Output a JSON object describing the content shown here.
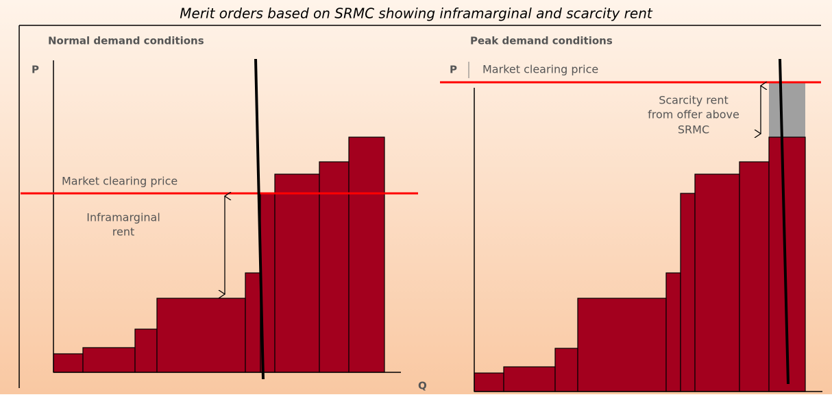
{
  "title": "Merit orders based on SRMC showing inframarginal and scarcity rent",
  "panels": [
    {
      "heading": "Normal demand conditions",
      "y_axis": "P",
      "x_axis": "Q",
      "price_label": "Market clearing price",
      "rent_label": [
        "Inframarginal",
        "rent"
      ]
    },
    {
      "heading": "Peak demand conditions",
      "y_axis": "P",
      "price_label": "Market clearing price",
      "rent_label": [
        "Scarcity rent",
        "from offer above",
        "SRMC"
      ]
    }
  ]
}
